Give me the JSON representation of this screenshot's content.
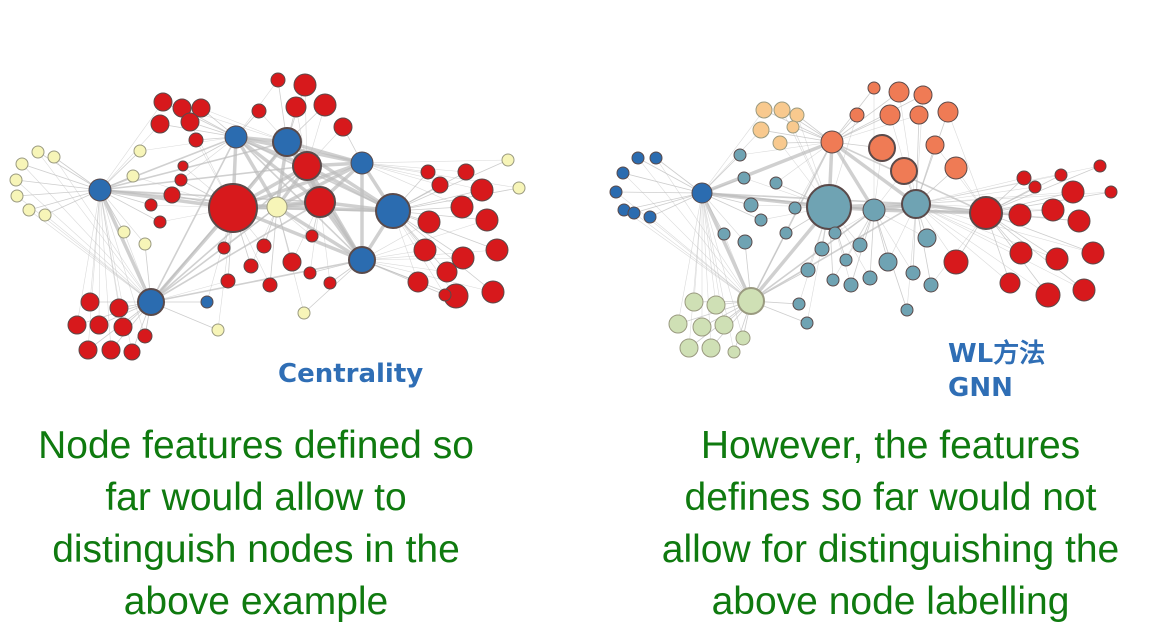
{
  "left_panel": {
    "label": "Centrality",
    "caption_lines": [
      "Node features defined so",
      "far would allow to",
      "distinguish nodes in the",
      "above example"
    ]
  },
  "right_panel": {
    "label_lines": [
      "WL方法",
      "GNN"
    ],
    "caption_lines": [
      "However, the features",
      "defines so far would not",
      "allow for distinguishing the",
      "above node labelling"
    ]
  },
  "colors": {
    "label_blue": "#2f6eb5",
    "caption_green": "#0f7a0f",
    "node_red": "#d7191c",
    "node_blue": "#2b6cb0",
    "node_yellow": "#f7f5b8",
    "node_teal": "#6fa3b3",
    "node_orange": "#ef7b55",
    "node_peach": "#f8c98e",
    "node_sage": "#cfe0b5",
    "edge": "#bcbcbc"
  }
}
